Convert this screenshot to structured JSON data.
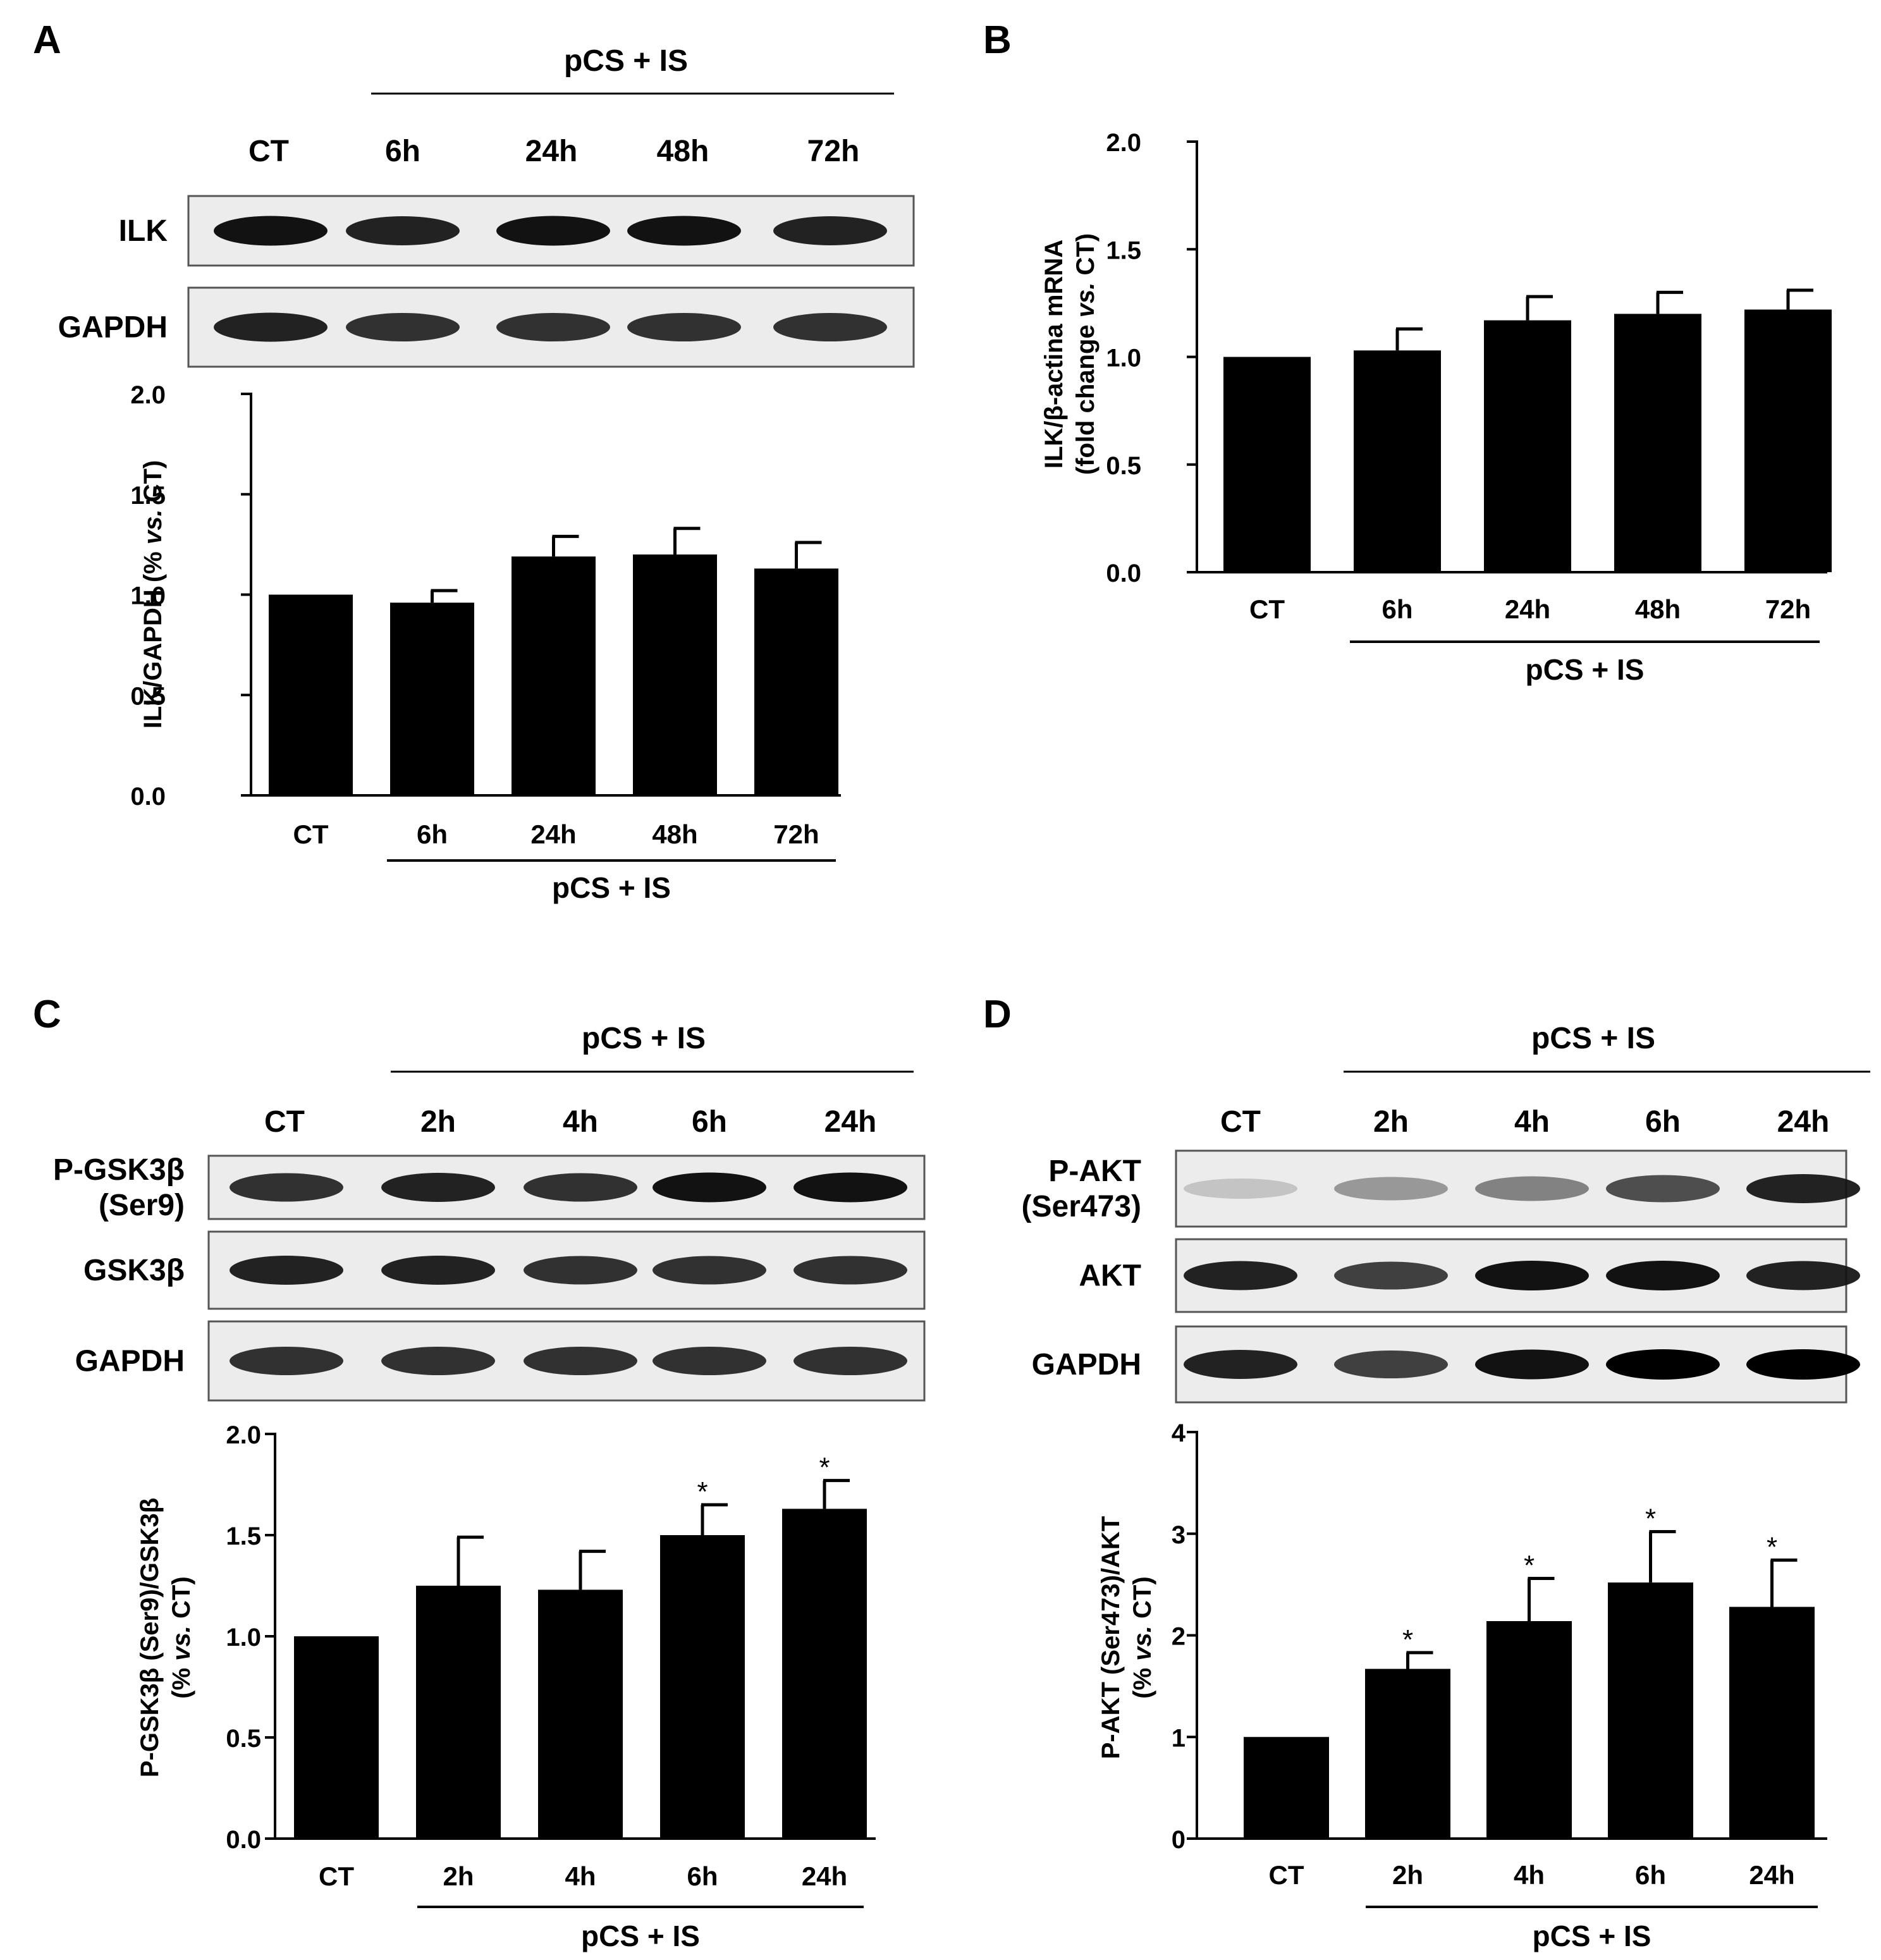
{
  "panels": [
    {
      "letter": "A",
      "blot": {
        "group_label": "pCS + IS",
        "lanes": [
          "CT",
          "6h",
          "24h",
          "48h",
          "72h"
        ],
        "rows": [
          {
            "label_lines": [
              "ILK"
            ],
            "intensity": [
              0.95,
              0.9,
              0.95,
              0.95,
              0.9
            ]
          },
          {
            "label_lines": [
              "GAPDH"
            ],
            "intensity": [
              0.9,
              0.85,
              0.85,
              0.85,
              0.85
            ]
          }
        ]
      }
    },
    {
      "letter": "B",
      "blot": null
    },
    {
      "letter": "C",
      "blot": {
        "group_label": "pCS + IS",
        "lanes": [
          "CT",
          "2h",
          "4h",
          "6h",
          "24h"
        ],
        "rows": [
          {
            "label_lines": [
              "P-GSK3β",
              "(Ser9)"
            ],
            "intensity": [
              0.85,
              0.9,
              0.85,
              0.95,
              0.95
            ]
          },
          {
            "label_lines": [
              "GSK3β"
            ],
            "intensity": [
              0.9,
              0.9,
              0.85,
              0.85,
              0.85
            ]
          },
          {
            "label_lines": [
              "GAPDH"
            ],
            "intensity": [
              0.85,
              0.85,
              0.85,
              0.85,
              0.85
            ]
          }
        ]
      }
    },
    {
      "letter": "D",
      "blot": {
        "group_label": "pCS + IS",
        "lanes": [
          "CT",
          "2h",
          "4h",
          "6h",
          "24h"
        ],
        "rows": [
          {
            "label_lines": [
              "P-AKT",
              "(Ser473)"
            ],
            "intensity": [
              0.2,
              0.45,
              0.55,
              0.75,
              0.9
            ]
          },
          {
            "label_lines": [
              "AKT"
            ],
            "intensity": [
              0.9,
              0.8,
              0.95,
              0.95,
              0.9
            ]
          },
          {
            "label_lines": [
              "GAPDH"
            ],
            "intensity": [
              0.9,
              0.8,
              0.95,
              1.0,
              1.0
            ]
          }
        ]
      }
    }
  ],
  "chart_data": [
    {
      "type": "bar",
      "panel": "A",
      "categories": [
        "CT",
        "6h",
        "24h",
        "48h",
        "72h"
      ],
      "values": [
        1.0,
        0.96,
        1.19,
        1.2,
        1.13
      ],
      "errors": [
        0.01,
        0.06,
        0.1,
        0.13,
        0.13
      ],
      "significance": [
        "",
        "",
        "",
        "",
        ""
      ],
      "ylabel_parts": [
        "ILK/GAPDH (% ",
        "vs.",
        " CT)"
      ],
      "ylim": [
        0,
        2.0
      ],
      "yticks": [
        "0.0",
        "0.5",
        "1.0",
        "1.5",
        "2.0"
      ],
      "group_label": "pCS + IS",
      "bar_color": "#000000"
    },
    {
      "type": "bar",
      "panel": "B",
      "categories": [
        "CT",
        "6h",
        "24h",
        "48h",
        "72h"
      ],
      "values": [
        1.0,
        1.03,
        1.17,
        1.2,
        1.22
      ],
      "errors": [
        0.005,
        0.1,
        0.11,
        0.1,
        0.09
      ],
      "significance": [
        "",
        "",
        "",
        "",
        ""
      ],
      "ylabel_line1": "ILK/β-actina mRNA",
      "ylabel_parts": [
        "(fold change ",
        "vs.",
        " CT)"
      ],
      "ylim": [
        0,
        2.0
      ],
      "yticks": [
        "0.0",
        "0.5",
        "1.0",
        "1.5",
        "2.0"
      ],
      "group_label": "pCS + IS",
      "bar_color": "#000000"
    },
    {
      "type": "bar",
      "panel": "C",
      "categories": [
        "CT",
        "2h",
        "4h",
        "6h",
        "24h"
      ],
      "values": [
        1.0,
        1.25,
        1.23,
        1.5,
        1.63
      ],
      "errors": [
        0.005,
        0.24,
        0.19,
        0.15,
        0.14
      ],
      "significance": [
        "",
        "",
        "",
        "*",
        "*"
      ],
      "ylabel_line1": "P-GSK3β (Ser9)/GSK3β",
      "ylabel_parts": [
        "(% ",
        "vs.",
        " CT)"
      ],
      "ylim": [
        0,
        2.0
      ],
      "yticks": [
        "0.0",
        "0.5",
        "1.0",
        "1.5",
        "2.0"
      ],
      "group_label": "pCS + IS",
      "bar_color": "#000000"
    },
    {
      "type": "bar",
      "panel": "D",
      "categories": [
        "CT",
        "2h",
        "4h",
        "6h",
        "24h"
      ],
      "values": [
        1.0,
        1.67,
        2.14,
        2.52,
        2.28
      ],
      "errors": [
        0.005,
        0.16,
        0.42,
        0.5,
        0.46
      ],
      "significance": [
        "",
        "*",
        "*",
        "*",
        "*"
      ],
      "ylabel_line1": "P-AKT (Ser473)/AKT",
      "ylabel_parts": [
        "(% ",
        "vs.",
        " CT)"
      ],
      "ylim": [
        0,
        4
      ],
      "yticks": [
        "0",
        "1",
        "2",
        "3",
        "4"
      ],
      "group_label": "pCS + IS",
      "bar_color": "#000000"
    }
  ]
}
